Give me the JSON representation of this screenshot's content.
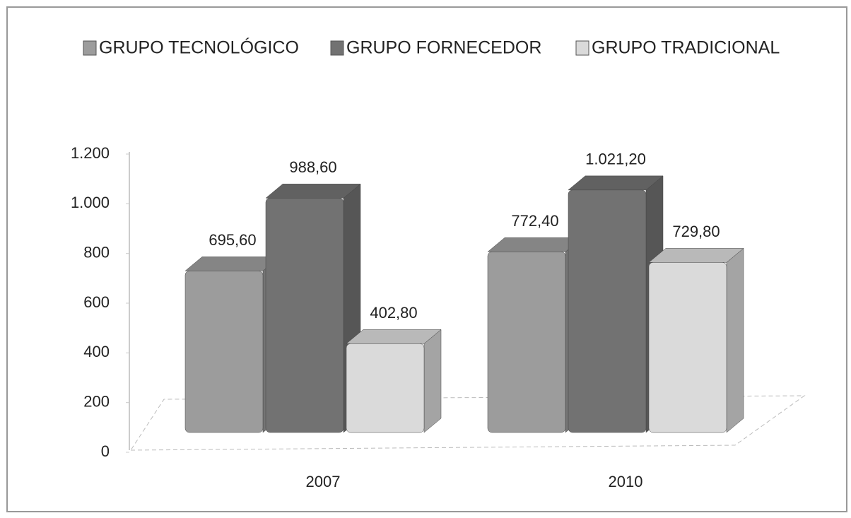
{
  "chart_data": {
    "type": "bar",
    "categories": [
      "2007",
      "2010"
    ],
    "series": [
      {
        "name": "GRUPO TECNOLÓGICO",
        "color": "#9c9c9c",
        "values": [
          695.6,
          772.4
        ],
        "value_labels": [
          "695,60",
          "772,40"
        ]
      },
      {
        "name": "GRUPO FORNECEDOR",
        "color": "#727272",
        "values": [
          988.6,
          1021.2
        ],
        "value_labels": [
          "988,60",
          "1.021,20"
        ]
      },
      {
        "name": "GRUPO TRADICIONAL",
        "color": "#dadada",
        "values": [
          402.8,
          729.8
        ],
        "value_labels": [
          "402,80",
          "729,80"
        ]
      }
    ],
    "ylim": [
      0,
      1200
    ],
    "yticks": [
      0,
      200,
      400,
      600,
      800,
      {
        "value": 1000,
        "label": "1.000"
      },
      {
        "value": 1200,
        "label": "1.200"
      }
    ],
    "legend": "top"
  }
}
